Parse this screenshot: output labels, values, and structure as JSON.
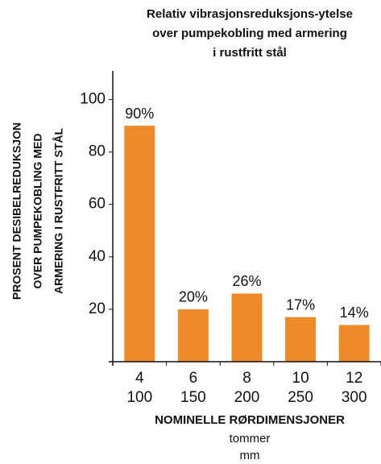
{
  "chart_data": {
    "type": "bar",
    "title": [
      "Relativ vibrasjonsreduksjons-ytelse",
      "over pumpekobling med armering",
      "i rustfritt stål"
    ],
    "ylabel": [
      "PROSENT DESIBELREDUKSJON",
      "OVER PUMPEKOBLING MED",
      "ARMERING I RUSTFRITT STÅL"
    ],
    "xlabel": "NOMINELLE RØRDIMENSJONER",
    "xlabel_units": [
      "tommer",
      "mm"
    ],
    "categories": [
      "4",
      "6",
      "8",
      "10",
      "12"
    ],
    "categories_mm": [
      "100",
      "150",
      "200",
      "250",
      "300"
    ],
    "values": [
      90,
      20,
      26,
      17,
      14
    ],
    "value_labels": [
      "90%",
      "20%",
      "26%",
      "17%",
      "14%"
    ],
    "color": "#ef8a2a",
    "ylim": [
      0,
      110
    ],
    "yticks": [
      20,
      40,
      60,
      80,
      100
    ]
  }
}
